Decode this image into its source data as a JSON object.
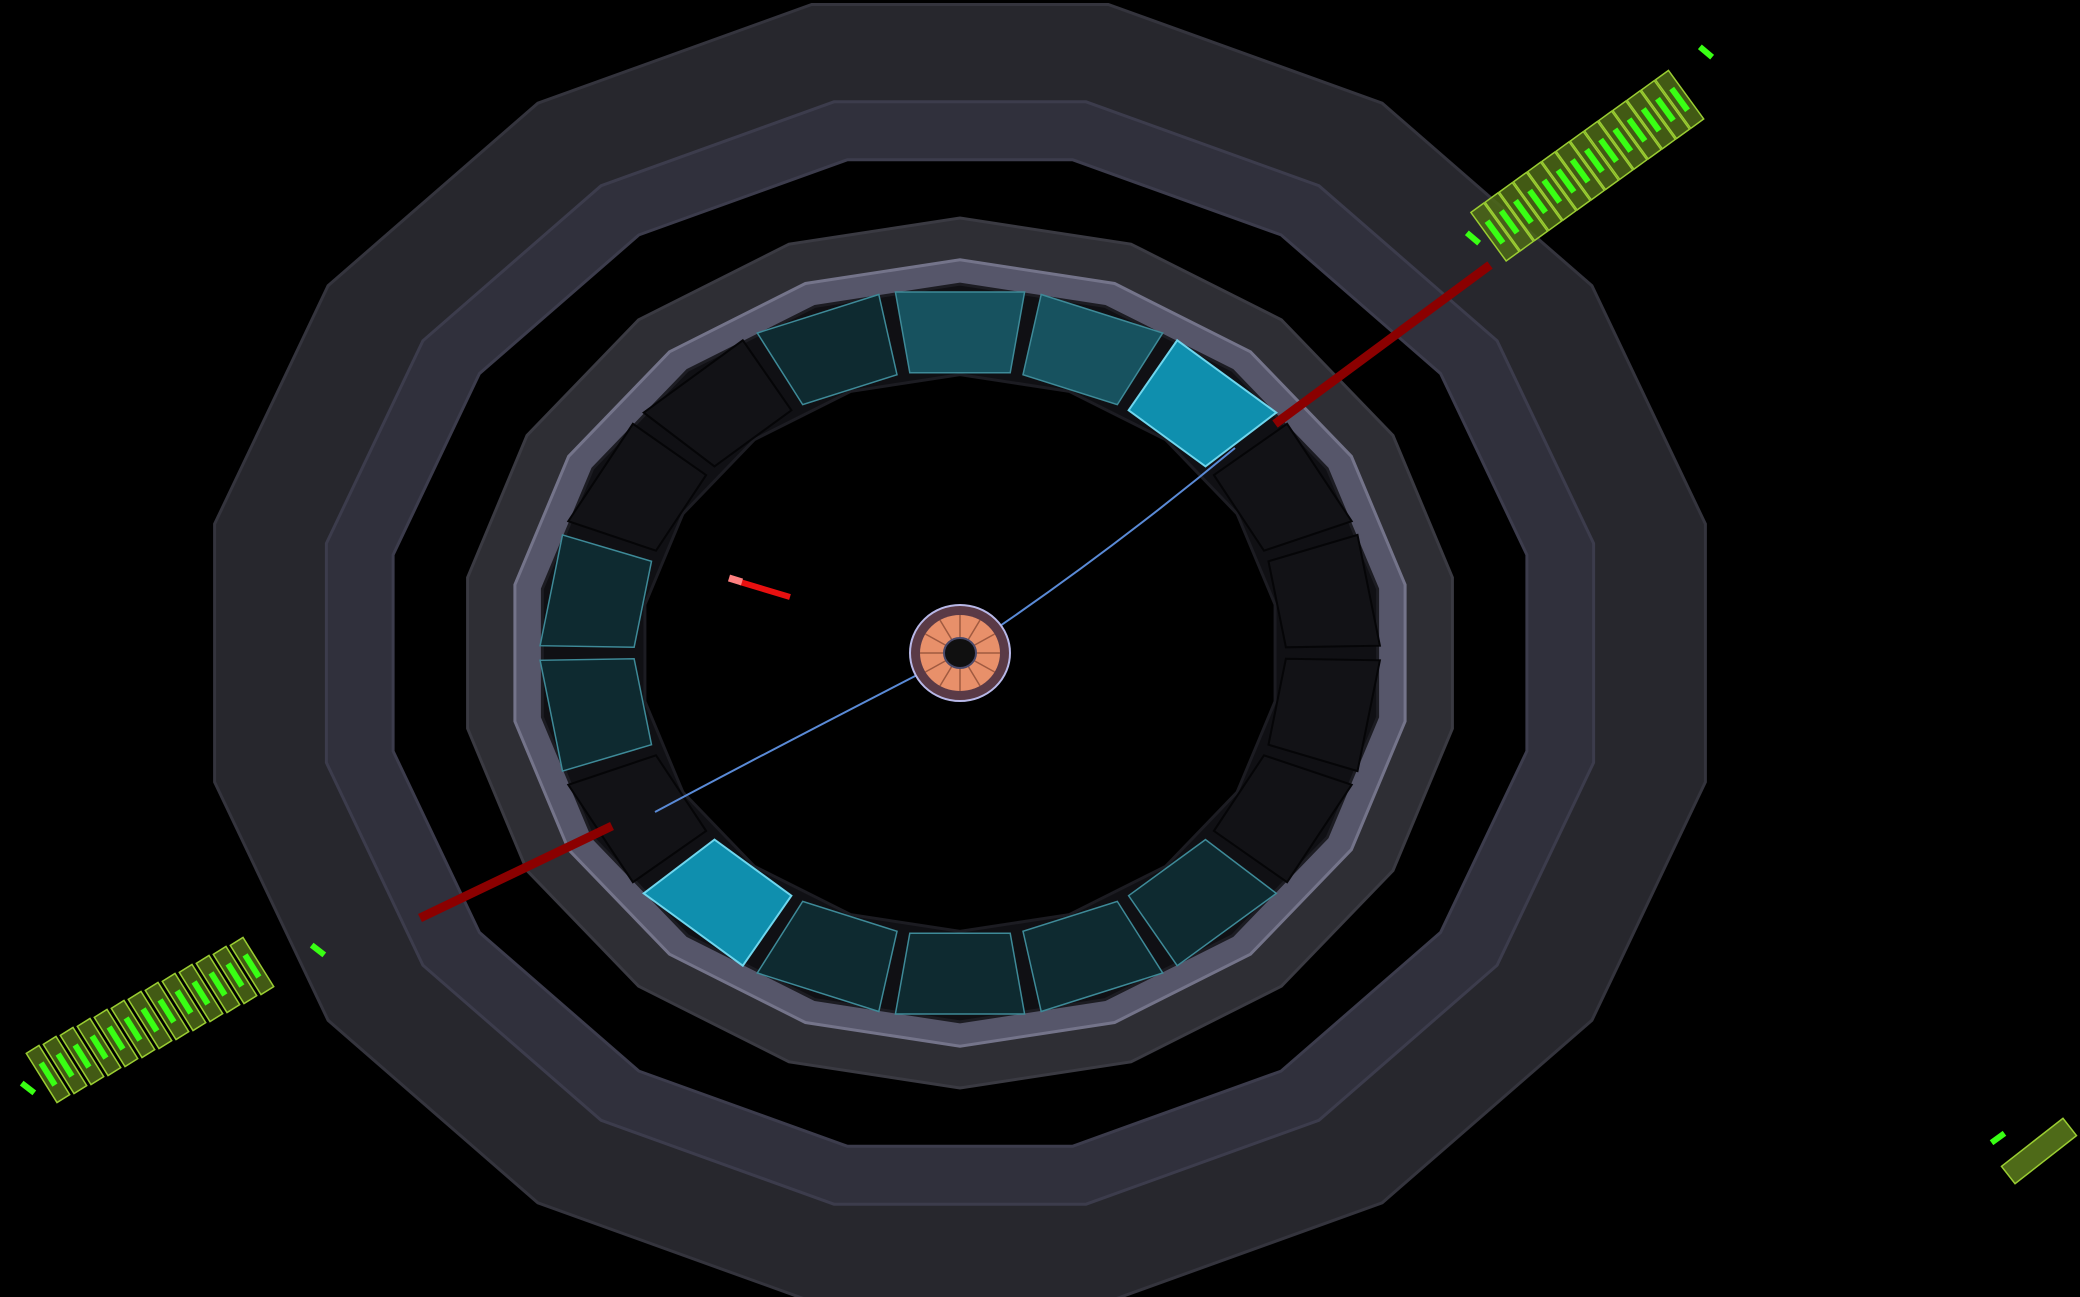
{
  "scene": {
    "background": "#000000",
    "colors": {
      "muon_outer_ring": "#27272d",
      "muon_outer_ring_edge": "#34343d",
      "muon_inner_ring": "#30303c",
      "muon_inner_ring_edge": "#3c3c4c",
      "hcal_ring": "#2e2e34",
      "hcal_ring_edge": "#3a3a42",
      "magnet_ring": "#56566a",
      "magnet_ring_edge": "#74748a",
      "dark_gap": "#101014",
      "ecal_cell_fill": "#0e2a30",
      "ecal_cell_edge": "#3e8a98",
      "ecal_cell_face": "#17525f",
      "ecal_hot_fill": "#0f8fae",
      "ecal_hot_face": "#1aa7c8",
      "ecal_hot_edge": "#6fd6ee",
      "muon_chamber_fill": "#4e6a18",
      "muon_chamber_edge": "#9acd32",
      "muon_hit": "#39ff14",
      "track_line": "#5a8ad6",
      "muon_track": "#8b0000",
      "jet_tower": "#e81010",
      "jet_tip": "#ff8080",
      "tracker_core": "#e8906a",
      "tracker_inner": "#101010",
      "tracker_outline": "#b8b8e8"
    },
    "event": {
      "muon_count": 2,
      "jet_tower_count": 1,
      "hot_ecal_cells": 2
    }
  }
}
